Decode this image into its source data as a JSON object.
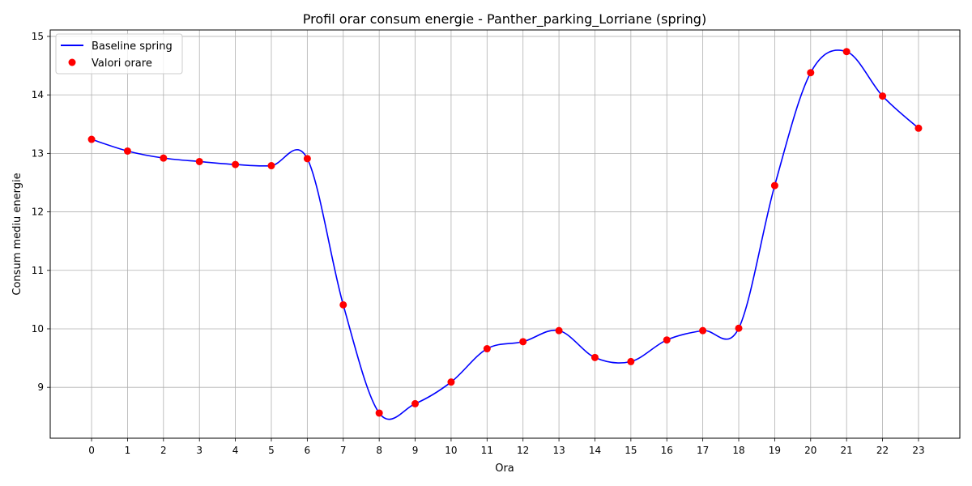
{
  "chart_data": {
    "type": "line",
    "title": "Profil orar consum energie - Panther_parking_Lorriane (spring)",
    "xlabel": "Ora",
    "ylabel": "Consum mediu energie",
    "x": [
      0,
      1,
      2,
      3,
      4,
      5,
      6,
      7,
      8,
      9,
      10,
      11,
      12,
      13,
      14,
      15,
      16,
      17,
      18,
      19,
      20,
      21,
      22,
      23
    ],
    "x_tick_labels": [
      "0",
      "1",
      "2",
      "3",
      "4",
      "5",
      "6",
      "7",
      "8",
      "9",
      "10",
      "11",
      "12",
      "13",
      "14",
      "15",
      "16",
      "17",
      "18",
      "19",
      "20",
      "21",
      "22",
      "23"
    ],
    "y_ticks": [
      9,
      10,
      11,
      12,
      13,
      14,
      15
    ],
    "y_tick_labels": [
      "9",
      "10",
      "11",
      "12",
      "13",
      "14",
      "15"
    ],
    "xlim": [
      -1.15,
      24.15
    ],
    "ylim": [
      8.13,
      15.11
    ],
    "grid": true,
    "legend_position": "top-left",
    "series": [
      {
        "name": "Baseline spring",
        "kind": "smooth-line",
        "color": "#0000ff",
        "values": [
          13.24,
          13.04,
          12.92,
          12.86,
          12.81,
          12.79,
          12.91,
          10.41,
          8.56,
          8.72,
          9.09,
          9.66,
          9.78,
          9.97,
          9.51,
          9.44,
          9.81,
          9.97,
          10.01,
          12.45,
          14.38,
          14.74,
          13.98,
          13.43
        ]
      },
      {
        "name": "Valori orare",
        "kind": "scatter",
        "color": "#ff0000",
        "values": [
          13.24,
          13.04,
          12.92,
          12.86,
          12.81,
          12.79,
          12.91,
          10.41,
          8.56,
          8.72,
          9.09,
          9.66,
          9.78,
          9.97,
          9.51,
          9.44,
          9.81,
          9.97,
          10.01,
          12.45,
          14.38,
          14.74,
          13.98,
          13.43
        ]
      }
    ]
  }
}
